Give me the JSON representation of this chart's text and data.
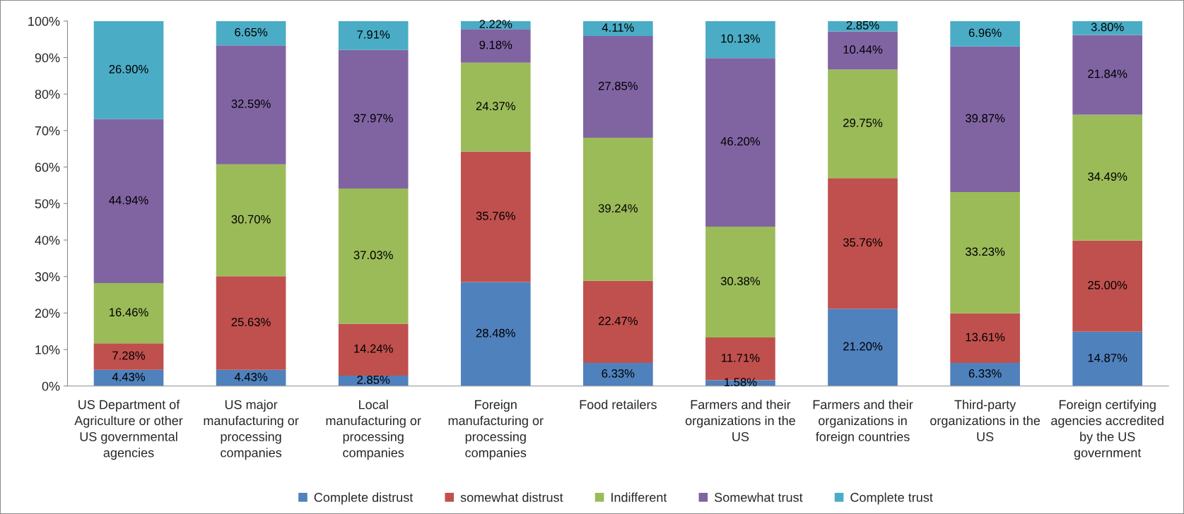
{
  "chart_data": {
    "type": "bar",
    "stacked": true,
    "categories": [
      "US Department of\nAgriculture or other\nUS governmental\nagencies",
      "US major\nmanufacturing or\nprocessing\ncompanies",
      "Local\nmanufacturing or\nprocessing\ncompanies",
      "Foreign\nmanufacturing or\nprocessing\ncompanies",
      "Food retailers",
      "Farmers and their\norganizations in the\nUS",
      "Farmers and their\norganizations in\nforeign countries",
      "Third-party\norganizations in the\nUS",
      "Foreign certifying\nagencies accredited\nby the US\ngovernment"
    ],
    "series": [
      {
        "name": "Complete distrust",
        "color": "#4f81bd",
        "values": [
          4.43,
          4.43,
          2.85,
          28.48,
          6.33,
          1.58,
          21.2,
          6.33,
          14.87
        ],
        "value_labels": [
          "4.43%",
          "4.43%",
          "2.85%",
          "28.48%",
          "6.33%",
          "1.58%",
          "21.20%",
          "6.33%",
          "14.87%"
        ]
      },
      {
        "name": "somewhat distrust",
        "color": "#c0504d",
        "values": [
          7.28,
          25.63,
          14.24,
          35.76,
          22.47,
          11.71,
          35.76,
          13.61,
          25.0
        ],
        "value_labels": [
          "7.28%",
          "25.63%",
          "14.24%",
          "35.76%",
          "22.47%",
          "11.71%",
          "35.76%",
          "13.61%",
          "25.00%"
        ]
      },
      {
        "name": "Indifferent",
        "color": "#9bbb59",
        "values": [
          16.46,
          30.7,
          37.03,
          24.37,
          39.24,
          30.38,
          29.75,
          33.23,
          34.49
        ],
        "value_labels": [
          "16.46%",
          "30.70%",
          "37.03%",
          "24.37%",
          "39.24%",
          "30.38%",
          "29.75%",
          "33.23%",
          "34.49%"
        ]
      },
      {
        "name": "Somewhat trust",
        "color": "#8064a2",
        "values": [
          44.94,
          32.59,
          37.97,
          9.18,
          27.85,
          46.2,
          10.44,
          39.87,
          21.84
        ],
        "value_labels": [
          "44.94%",
          "32.59%",
          "37.97%",
          "9.18%",
          "27.85%",
          "46.20%",
          "10.44%",
          "39.87%",
          "21.84%"
        ]
      },
      {
        "name": "Complete trust",
        "color": "#4bacc6",
        "values": [
          26.9,
          6.65,
          7.91,
          2.22,
          4.11,
          10.13,
          2.85,
          6.96,
          3.8
        ],
        "value_labels": [
          "26.90%",
          "6.65%",
          "7.91%",
          "2.22%",
          "4.11%",
          "10.13%",
          "2.85%",
          "6.96%",
          "3.80%"
        ]
      }
    ],
    "ylim": [
      0,
      100
    ],
    "yticks": [
      {
        "value": 0,
        "label": "0%"
      },
      {
        "value": 10,
        "label": "10%"
      },
      {
        "value": 20,
        "label": "20%"
      },
      {
        "value": 30,
        "label": "30%"
      },
      {
        "value": 40,
        "label": "40%"
      },
      {
        "value": 50,
        "label": "50%"
      },
      {
        "value": 60,
        "label": "60%"
      },
      {
        "value": 70,
        "label": "70%"
      },
      {
        "value": 80,
        "label": "80%"
      },
      {
        "value": 90,
        "label": "90%"
      },
      {
        "value": 100,
        "label": "100%"
      }
    ],
    "grid": false,
    "legend": "bottom"
  }
}
